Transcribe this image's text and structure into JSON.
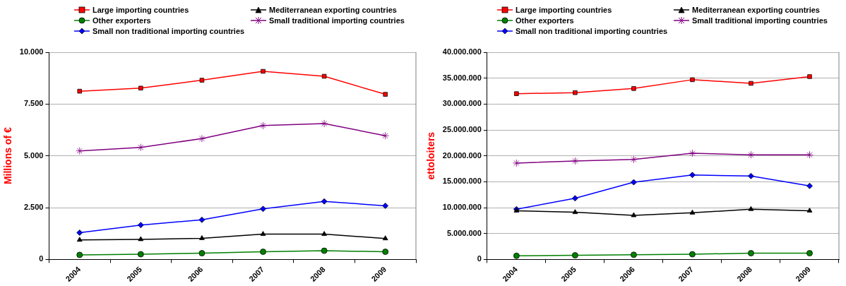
{
  "chart_data": [
    {
      "type": "line",
      "ylabel": "Millions of €",
      "categories": [
        "2004",
        "2005",
        "2006",
        "2007",
        "2008",
        "2009"
      ],
      "ylim": [
        0,
        10000
      ],
      "yticks": [
        {
          "value": 0,
          "label": "0"
        },
        {
          "value": 2500,
          "label": "2.500"
        },
        {
          "value": 5000,
          "label": "5.000"
        },
        {
          "value": 7500,
          "label": "7.500"
        },
        {
          "value": 10000,
          "label": "10.000"
        }
      ],
      "grid": "y",
      "legend": "top",
      "series": [
        {
          "name": "Large importing countries",
          "color": "#ff0000",
          "marker": "square",
          "values": [
            8120,
            8270,
            8650,
            9080,
            8840,
            7970
          ]
        },
        {
          "name": "Mediterranean exporting countries",
          "color": "#000000",
          "marker": "triangle",
          "values": [
            940,
            970,
            1020,
            1220,
            1220,
            1010
          ]
        },
        {
          "name": "Other exporters",
          "color": "#008000",
          "marker": "circle",
          "values": [
            220,
            250,
            300,
            370,
            420,
            370
          ]
        },
        {
          "name": "Small traditional importing countries",
          "color": "#800080",
          "marker": "cross",
          "values": [
            5240,
            5410,
            5830,
            6460,
            6560,
            5970
          ]
        },
        {
          "name": "Small non traditional importing countries",
          "color": "#0000ff",
          "marker": "diamond",
          "values": [
            1290,
            1660,
            1910,
            2440,
            2800,
            2590
          ]
        }
      ]
    },
    {
      "type": "line",
      "ylabel": "ettoloiters",
      "categories": [
        "2004",
        "2005",
        "2006",
        "2007",
        "2008",
        "2009"
      ],
      "ylim": [
        0,
        40000000
      ],
      "yticks": [
        {
          "value": 0,
          "label": "0"
        },
        {
          "value": 5000000,
          "label": "5.000.000"
        },
        {
          "value": 10000000,
          "label": "10.000.000"
        },
        {
          "value": 15000000,
          "label": "15.000.000"
        },
        {
          "value": 20000000,
          "label": "20.000.000"
        },
        {
          "value": 25000000,
          "label": "25.000.000"
        },
        {
          "value": 30000000,
          "label": "30.000.000"
        },
        {
          "value": 35000000,
          "label": "35.000.000"
        },
        {
          "value": 40000000,
          "label": "40.000.000"
        }
      ],
      "grid": "y",
      "legend": "top",
      "series": [
        {
          "name": "Large importing countries",
          "color": "#ff0000",
          "marker": "square",
          "values": [
            32000000,
            32200000,
            33000000,
            34700000,
            34000000,
            35300000
          ]
        },
        {
          "name": "Mediterranean exporting countries",
          "color": "#000000",
          "marker": "triangle",
          "values": [
            9400000,
            9100000,
            8500000,
            9000000,
            9700000,
            9400000
          ]
        },
        {
          "name": "Other exporters",
          "color": "#008000",
          "marker": "circle",
          "values": [
            700000,
            800000,
            900000,
            1000000,
            1200000,
            1200000
          ]
        },
        {
          "name": "Small traditional importing countries",
          "color": "#800080",
          "marker": "cross",
          "values": [
            18600000,
            19000000,
            19300000,
            20500000,
            20200000,
            20200000
          ]
        },
        {
          "name": "Small non traditional importing countries",
          "color": "#0000ff",
          "marker": "diamond",
          "values": [
            9700000,
            11800000,
            14900000,
            16300000,
            16100000,
            14200000
          ]
        }
      ]
    }
  ]
}
